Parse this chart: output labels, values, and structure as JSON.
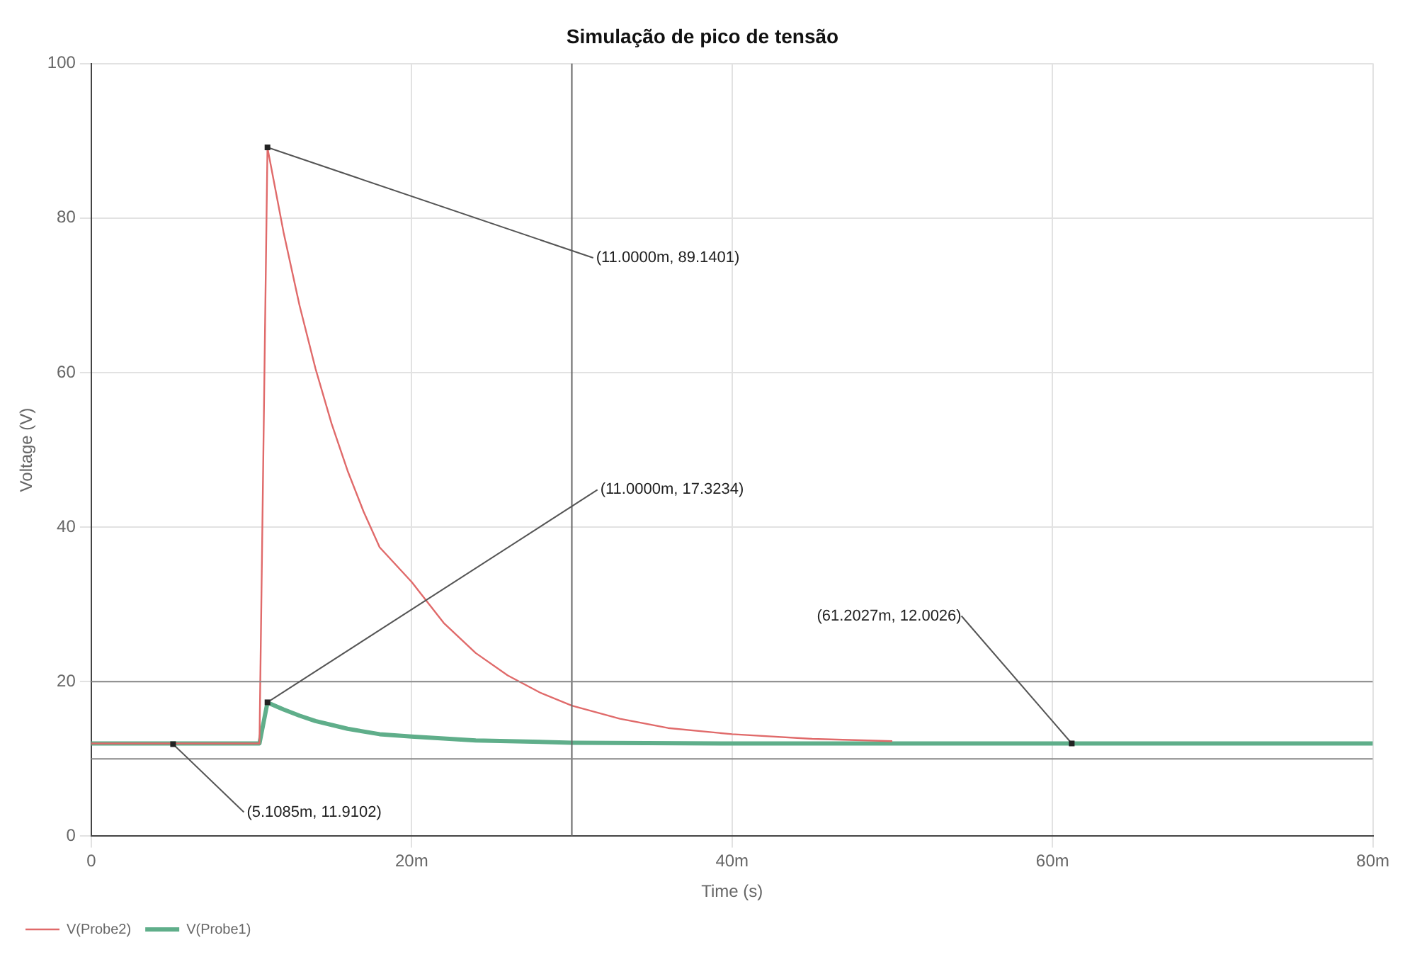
{
  "chart_data": {
    "type": "line",
    "title": "Simulação de pico de tensão",
    "xlabel": "Time (s)",
    "ylabel": "Voltage (V)",
    "xlim": [
      0,
      80
    ],
    "xticks": [
      0,
      {
        "value": 20,
        "label": "20m"
      },
      {
        "value": 40,
        "label": "40m"
      },
      {
        "value": 60,
        "label": "60m"
      },
      {
        "value": 80,
        "label": "80m"
      }
    ],
    "ylim": [
      0,
      100
    ],
    "yticks": [
      0,
      20,
      40,
      60,
      80,
      100
    ],
    "grid": true,
    "legend": "bottom left",
    "marker": "none",
    "line_style": "solid",
    "series": [
      {
        "name": "V(Probe2)",
        "color": "#e06a6a",
        "x": [
          0,
          10.5,
          11,
          12,
          13,
          14,
          15,
          16,
          17,
          18,
          20,
          22,
          24,
          26,
          28,
          30,
          33,
          36,
          40,
          45,
          50
        ],
        "values": [
          12,
          12,
          89.1,
          78.2,
          68.7,
          60.5,
          53.4,
          47.3,
          42,
          37.4,
          32.9,
          27.6,
          23.7,
          20.8,
          18.6,
          16.9,
          15.2,
          14,
          13.2,
          12.6,
          12.3
        ]
      },
      {
        "name": "V(Probe1)",
        "color": "#5fae8a",
        "x": [
          0,
          10.5,
          11,
          12,
          13,
          14,
          16,
          18,
          20,
          24,
          30,
          40,
          80
        ],
        "values": [
          12,
          12,
          17.3,
          16.4,
          15.6,
          14.9,
          13.9,
          13.2,
          12.9,
          12.4,
          12.1,
          12,
          12
        ]
      }
    ],
    "ref_lines": [
      {
        "axis": "x",
        "value": 30,
        "color": "#666666"
      },
      {
        "axis": "y",
        "value": 20,
        "color": "#888888"
      },
      {
        "axis": "y",
        "value": 10,
        "color": "#888888"
      }
    ],
    "annotations": [
      {
        "text": "(11.0000m, 89.1401)",
        "x": 11,
        "y": 89.1401
      },
      {
        "text": "(11.0000m, 17.3234)",
        "x": 11,
        "y": 17.3234
      },
      {
        "text": "(5.1085m, 11.9102)",
        "x": 5.1085,
        "y": 11.9102
      },
      {
        "text": "(61.2027m, 12.0026)",
        "x": 61.2027,
        "y": 12.0026
      }
    ]
  }
}
